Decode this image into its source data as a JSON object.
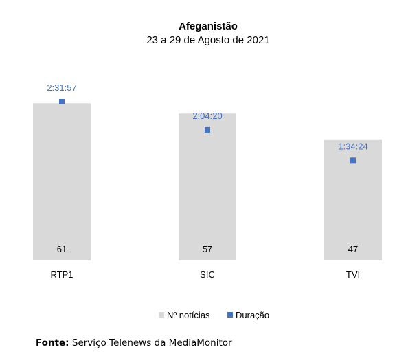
{
  "chart_data": {
    "type": "bar",
    "title": "Afeganistão",
    "subtitle": "23 a 29 de Agosto de 2021",
    "categories": [
      "RTP1",
      "SIC",
      "TVI"
    ],
    "series": [
      {
        "name": "Nº notícias",
        "type": "bar",
        "color": "#D9D9D9",
        "values": [
          61,
          57,
          47
        ]
      },
      {
        "name": "Duração",
        "type": "scatter",
        "color": "#4472C4",
        "values": [
          "2:31:57",
          "2:04:20",
          "1:34:24"
        ],
        "values_seconds": [
          9117,
          7460,
          5664
        ]
      }
    ],
    "legend": "bottom-center",
    "grid": false
  },
  "source": {
    "label": "Fonte:",
    "text": " Serviço Telenews da MediaMonitor"
  }
}
